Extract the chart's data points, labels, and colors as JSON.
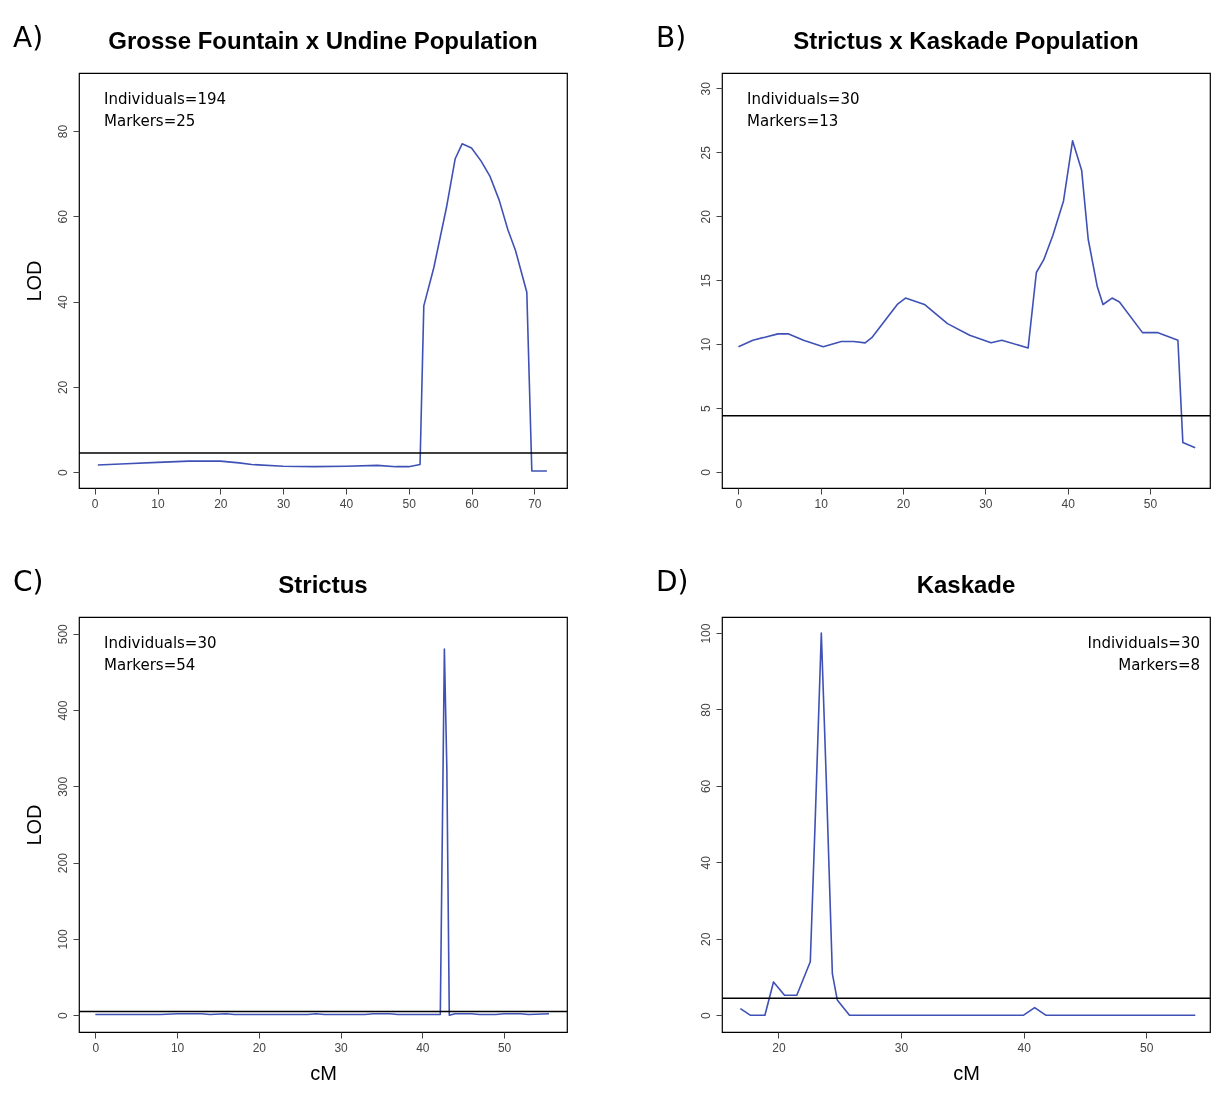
{
  "chart_data": [
    {
      "type": "line",
      "title": "Grosse Fountain x Undine Population",
      "ylabel": "LOD",
      "annotations": [
        "A)",
        "Individuals=194",
        "Markers=25"
      ],
      "color": "#3f51b5",
      "xlim": [
        -2.5,
        75.2
      ],
      "ylim": [
        -3.7,
        93.6
      ],
      "xticks": [
        0,
        10,
        20,
        30,
        40,
        50,
        60,
        70
      ],
      "yticks": [
        0,
        20,
        40,
        60,
        80
      ],
      "x": [
        0.5,
        5,
        10,
        15,
        20,
        23,
        25,
        30,
        35,
        40,
        45,
        48,
        50,
        51.8,
        52.4,
        54,
        56,
        57.4,
        58.5,
        60,
        61.5,
        62.9,
        64.4,
        65.8,
        67,
        68.8,
        69.6,
        72
      ],
      "values": [
        1.7,
        2,
        2.3,
        2.6,
        2.6,
        2.2,
        1.8,
        1.4,
        1.3,
        1.4,
        1.6,
        1.3,
        1.3,
        1.8,
        39,
        48,
        62,
        73.5,
        77,
        76,
        73,
        69.5,
        63.8,
        56.8,
        52,
        42.2,
        0.3,
        0.3
      ],
      "ref_lines": [
        {
          "axis": "y",
          "value": 4.5,
          "color": "#000000"
        }
      ]
    },
    {
      "type": "line",
      "title": "Strictus x Kaskade Population",
      "annotations": [
        "B)",
        "Individuals=30",
        "Markers=13"
      ],
      "color": "#3f51b5",
      "xlim": [
        -2,
        57.3
      ],
      "ylim": [
        -1.25,
        31.2
      ],
      "xticks": [
        0,
        10,
        20,
        30,
        40,
        50
      ],
      "yticks": [
        0,
        5,
        10,
        15,
        20,
        25,
        30
      ],
      "x": [
        0,
        1.75,
        4.8,
        6.1,
        7.9,
        10.3,
        12.5,
        14,
        15.4,
        16.2,
        19.3,
        20.3,
        22.6,
        25.4,
        28.1,
        30.7,
        32,
        35.2,
        36.2,
        37.1,
        38.2,
        39.5,
        40.6,
        41.7,
        42.5,
        43.6,
        44.3,
        45.4,
        46.3,
        49.1,
        50.9,
        52.2,
        53.4,
        54,
        55.5
      ],
      "values": [
        9.8,
        10.3,
        10.8,
        10.8,
        10.3,
        9.8,
        10.2,
        10.2,
        10.1,
        10.5,
        13.1,
        13.6,
        13.1,
        11.6,
        10.7,
        10.1,
        10.3,
        9.7,
        15.6,
        16.6,
        18.5,
        21.2,
        25.9,
        23.6,
        18.2,
        14.5,
        13.1,
        13.6,
        13.3,
        10.9,
        10.9,
        10.6,
        10.3,
        2.3,
        1.9
      ],
      "ref_lines": [
        {
          "axis": "y",
          "value": 4.4,
          "color": "#000000"
        }
      ]
    },
    {
      "type": "line",
      "title": "Strictus",
      "xlabel": "cM",
      "ylabel": "LOD",
      "annotations": [
        "C)",
        "Individuals=30",
        "Markers=54"
      ],
      "color": "#3f51b5",
      "xlim": [
        -2,
        57.7
      ],
      "ylim": [
        -22,
        522
      ],
      "xticks": [
        0,
        10,
        20,
        30,
        40,
        50
      ],
      "yticks": [
        0,
        100,
        200,
        300,
        400,
        500
      ],
      "x": [
        0,
        8,
        10,
        13,
        14,
        16,
        17,
        26,
        27,
        28,
        33,
        34,
        36,
        37,
        42.2,
        42.5,
        42.7,
        43,
        43.3,
        44,
        46,
        47,
        49,
        50,
        52,
        53,
        55.5
      ],
      "values": [
        1,
        1,
        2,
        2,
        1,
        2,
        1,
        1,
        2,
        1,
        1,
        2,
        2,
        1,
        1,
        288,
        480,
        323,
        0,
        2,
        2,
        1,
        1,
        2,
        2,
        1,
        2
      ],
      "ref_lines": [
        {
          "axis": "y",
          "value": 5,
          "color": "#000000"
        }
      ]
    },
    {
      "type": "line",
      "title": "Kaskade",
      "xlabel": "cM",
      "annotations": [
        "D)",
        "Individuals=30",
        "Markers=8"
      ],
      "color": "#3f51b5",
      "xlim": [
        15.4,
        55.2
      ],
      "ylim": [
        -4.4,
        104.2
      ],
      "xticks": [
        20,
        30,
        40,
        50
      ],
      "yticks": [
        0,
        20,
        40,
        60,
        80,
        100
      ],
      "x": [
        16.9,
        17.7,
        18.9,
        19.6,
        20.5,
        21.5,
        22.6,
        23,
        23.5,
        23.9,
        24.4,
        24.8,
        25.8,
        40,
        40.9,
        41.8,
        54
      ],
      "values": [
        1.7,
        0,
        0,
        8.7,
        5.2,
        5.2,
        14,
        50.8,
        100,
        62,
        10.9,
        4,
        0,
        0,
        2,
        0,
        0
      ],
      "ref_lines": [
        {
          "axis": "y",
          "value": 4.4,
          "color": "#000000"
        }
      ]
    }
  ]
}
